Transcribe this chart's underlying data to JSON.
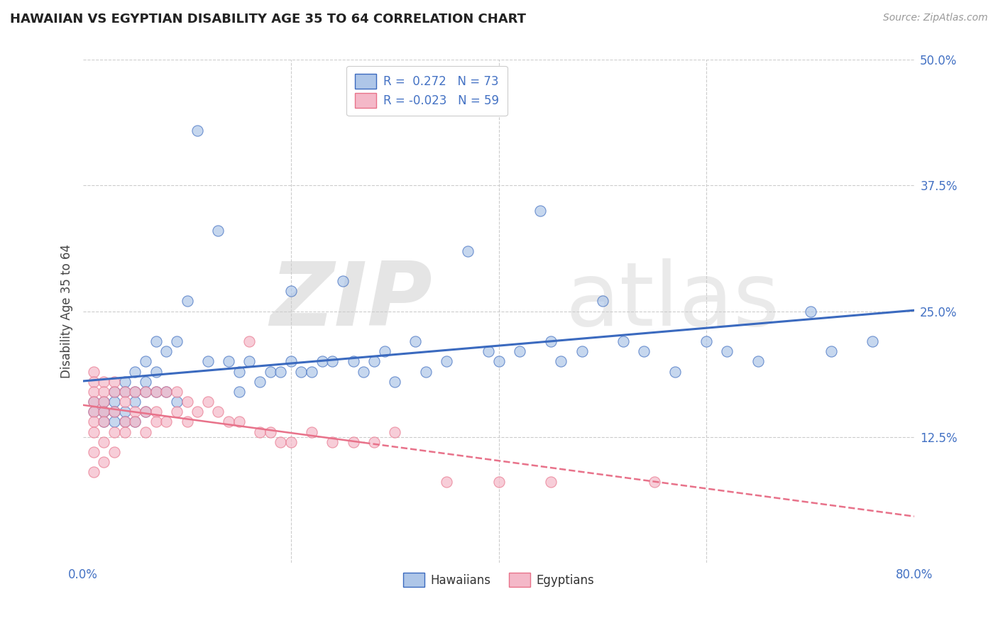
{
  "title": "HAWAIIAN VS EGYPTIAN DISABILITY AGE 35 TO 64 CORRELATION CHART",
  "source": "Source: ZipAtlas.com",
  "ylabel": "Disability Age 35 to 64",
  "xlim": [
    0.0,
    0.8
  ],
  "ylim": [
    0.0,
    0.5
  ],
  "xticks": [
    0.0,
    0.2,
    0.4,
    0.6,
    0.8
  ],
  "xticklabels": [
    "0.0%",
    "",
    "",
    "",
    "80.0%"
  ],
  "yticks": [
    0.0,
    0.125,
    0.25,
    0.375,
    0.5
  ],
  "yticklabels": [
    "",
    "12.5%",
    "25.0%",
    "37.5%",
    "50.0%"
  ],
  "hawaiian_R": 0.272,
  "hawaiian_N": 73,
  "egyptian_R": -0.023,
  "egyptian_N": 59,
  "hawaiian_color": "#aec6e8",
  "egyptian_color": "#f4b8c8",
  "hawaiian_line_color": "#3b6abf",
  "egyptian_line_color": "#e8728a",
  "hawaiian_x": [
    0.01,
    0.01,
    0.02,
    0.02,
    0.02,
    0.02,
    0.03,
    0.03,
    0.03,
    0.03,
    0.04,
    0.04,
    0.04,
    0.04,
    0.05,
    0.05,
    0.05,
    0.05,
    0.06,
    0.06,
    0.06,
    0.06,
    0.07,
    0.07,
    0.07,
    0.08,
    0.08,
    0.09,
    0.09,
    0.1,
    0.11,
    0.12,
    0.13,
    0.14,
    0.15,
    0.15,
    0.16,
    0.17,
    0.18,
    0.19,
    0.2,
    0.2,
    0.21,
    0.22,
    0.23,
    0.24,
    0.25,
    0.26,
    0.27,
    0.28,
    0.29,
    0.3,
    0.32,
    0.33,
    0.35,
    0.37,
    0.39,
    0.4,
    0.42,
    0.44,
    0.45,
    0.46,
    0.48,
    0.5,
    0.52,
    0.54,
    0.57,
    0.6,
    0.62,
    0.65,
    0.7,
    0.72,
    0.76
  ],
  "hawaiian_y": [
    0.16,
    0.15,
    0.16,
    0.15,
    0.15,
    0.14,
    0.17,
    0.16,
    0.15,
    0.14,
    0.18,
    0.17,
    0.15,
    0.14,
    0.19,
    0.17,
    0.16,
    0.14,
    0.2,
    0.18,
    0.17,
    0.15,
    0.22,
    0.19,
    0.17,
    0.21,
    0.17,
    0.22,
    0.16,
    0.26,
    0.43,
    0.2,
    0.33,
    0.2,
    0.19,
    0.17,
    0.2,
    0.18,
    0.19,
    0.19,
    0.27,
    0.2,
    0.19,
    0.19,
    0.2,
    0.2,
    0.28,
    0.2,
    0.19,
    0.2,
    0.21,
    0.18,
    0.22,
    0.19,
    0.2,
    0.31,
    0.21,
    0.2,
    0.21,
    0.35,
    0.22,
    0.2,
    0.21,
    0.26,
    0.22,
    0.21,
    0.19,
    0.22,
    0.21,
    0.2,
    0.25,
    0.21,
    0.22
  ],
  "egyptian_x": [
    0.01,
    0.01,
    0.01,
    0.01,
    0.01,
    0.01,
    0.01,
    0.01,
    0.01,
    0.02,
    0.02,
    0.02,
    0.02,
    0.02,
    0.02,
    0.02,
    0.03,
    0.03,
    0.03,
    0.03,
    0.03,
    0.04,
    0.04,
    0.04,
    0.04,
    0.05,
    0.05,
    0.05,
    0.06,
    0.06,
    0.06,
    0.07,
    0.07,
    0.07,
    0.08,
    0.08,
    0.09,
    0.09,
    0.1,
    0.1,
    0.11,
    0.12,
    0.13,
    0.14,
    0.15,
    0.16,
    0.17,
    0.18,
    0.19,
    0.2,
    0.22,
    0.24,
    0.26,
    0.28,
    0.3,
    0.35,
    0.4,
    0.45,
    0.55
  ],
  "egyptian_y": [
    0.19,
    0.18,
    0.17,
    0.16,
    0.15,
    0.14,
    0.13,
    0.11,
    0.09,
    0.18,
    0.17,
    0.16,
    0.15,
    0.14,
    0.12,
    0.1,
    0.18,
    0.17,
    0.15,
    0.13,
    0.11,
    0.17,
    0.16,
    0.14,
    0.13,
    0.17,
    0.15,
    0.14,
    0.17,
    0.15,
    0.13,
    0.17,
    0.15,
    0.14,
    0.17,
    0.14,
    0.17,
    0.15,
    0.16,
    0.14,
    0.15,
    0.16,
    0.15,
    0.14,
    0.14,
    0.22,
    0.13,
    0.13,
    0.12,
    0.12,
    0.13,
    0.12,
    0.12,
    0.12,
    0.13,
    0.08,
    0.08,
    0.08,
    0.08
  ]
}
